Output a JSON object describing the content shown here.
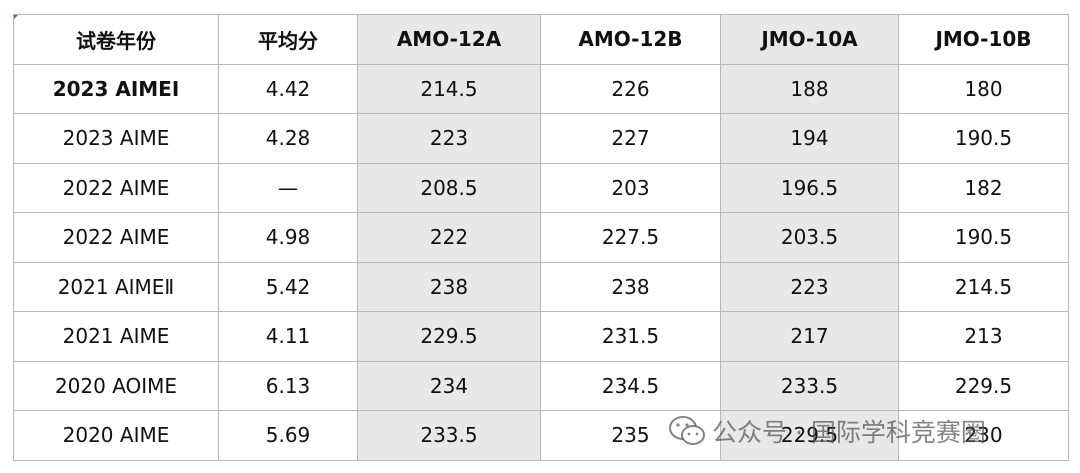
{
  "table": {
    "header": [
      "试卷年份",
      "平均分",
      "AMO-12A",
      "AMO-12B",
      "JMO-10A",
      "JMO-10B"
    ],
    "rows": [
      [
        "2023   AIMEI",
        "4.42",
        "214.5",
        "226",
        "188",
        "180"
      ],
      [
        "2023 AIME",
        "4.28",
        "223",
        "227",
        "194",
        "190.5"
      ],
      [
        "2022 AIME",
        "—",
        "208.5",
        "203",
        "196.5",
        "182"
      ],
      [
        "2022 AIME",
        "4.98",
        "222",
        "227.5",
        "203.5",
        "190.5"
      ],
      [
        "2021 AIMEⅡ",
        "5.42",
        "238",
        "238",
        "223",
        "214.5"
      ],
      [
        "2021 AIME",
        "4.11",
        "229.5",
        "231.5",
        "217",
        "213"
      ],
      [
        "2020 AOIME",
        "6.13",
        "234",
        "234.5",
        "233.5",
        "229.5"
      ],
      [
        "2020 AIME",
        "5.69",
        "233.5",
        "235",
        "229.5",
        "230"
      ]
    ]
  },
  "watermark": "公众号 · 国际学科竞赛圈"
}
